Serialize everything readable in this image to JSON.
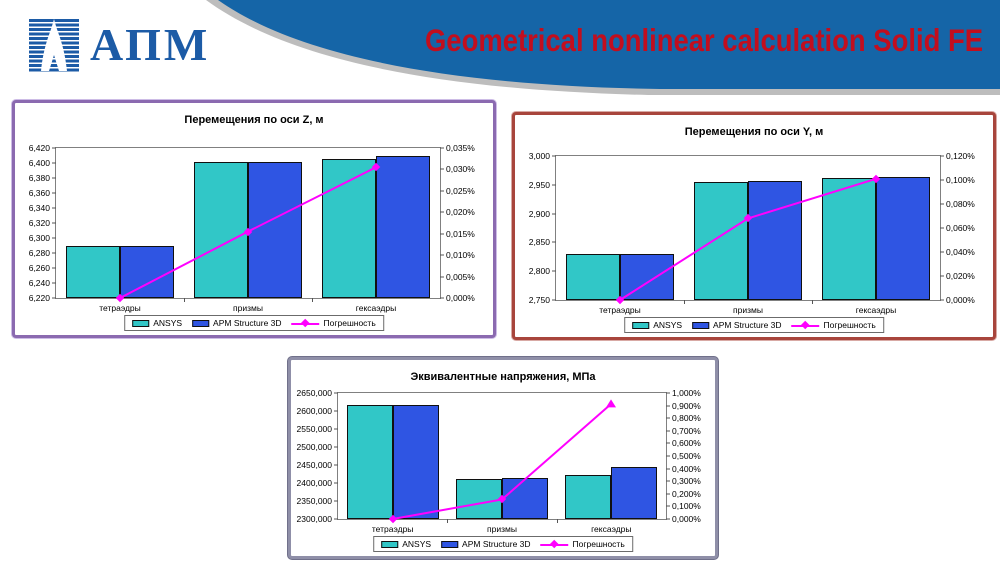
{
  "header": {
    "logo_text": "АПМ",
    "title": "Geometrical nonlinear calculation Solid FE"
  },
  "legend": {
    "ansys": "ANSYS",
    "apm": "APM Structure 3D",
    "error": "Погрешность"
  },
  "colors": {
    "ansys": "#31C7C7",
    "apm": "#2F55E3",
    "error": "#FF00FF",
    "banner_blue": "#1565A7",
    "banner_gray": "#BDBDBD",
    "title_red": "#C20E1E",
    "logo_blue": "#1C5BA6"
  },
  "chart_data": [
    {
      "type": "bar+line",
      "title": "Перемещения по оси Z, м",
      "categories": [
        "тетраэдры",
        "призмы",
        "гексаэдры"
      ],
      "series": [
        {
          "name": "ANSYS",
          "values": [
            6.29,
            6.401,
            6.406
          ]
        },
        {
          "name": "APM Structure 3D",
          "values": [
            6.29,
            6.402,
            6.409
          ]
        }
      ],
      "line": {
        "name": "Погрешность",
        "values_pct": [
          0.0,
          0.0155,
          0.0305
        ]
      },
      "left_axis": {
        "min": 6.22,
        "max": 6.42,
        "ticks": [
          "6,420",
          "6,400",
          "6,380",
          "6,360",
          "6,340",
          "6,320",
          "6,300",
          "6,280",
          "6,260",
          "6,240",
          "6,220"
        ]
      },
      "right_axis": {
        "min": 0.0,
        "max": 0.035,
        "ticks": [
          "0,035%",
          "0,030%",
          "0,025%",
          "0,020%",
          "0,015%",
          "0,010%",
          "0,005%",
          "0,000%"
        ]
      },
      "markers": [
        "diamond",
        "diamond",
        "diamond"
      ],
      "border_color": "#8B6AB0",
      "border_glow": "#CDBCE6",
      "legend_position": "bottom",
      "grid": "off"
    },
    {
      "type": "bar+line",
      "title": "Перемещения по оси Y, м",
      "categories": [
        "тетраэдры",
        "призмы",
        "гексаэдры"
      ],
      "series": [
        {
          "name": "ANSYS",
          "values": [
            2.83,
            2.955,
            2.961
          ]
        },
        {
          "name": "APM Structure 3D",
          "values": [
            2.83,
            2.957,
            2.963
          ]
        }
      ],
      "line": {
        "name": "Погрешность",
        "values_pct": [
          0.0,
          0.068,
          0.101
        ]
      },
      "left_axis": {
        "min": 2.75,
        "max": 3.0,
        "ticks": [
          "3,000",
          "2,950",
          "2,900",
          "2,850",
          "2,800",
          "2,750"
        ]
      },
      "right_axis": {
        "min": 0.0,
        "max": 0.12,
        "ticks": [
          "0,120%",
          "0,100%",
          "0,080%",
          "0,060%",
          "0,040%",
          "0,020%",
          "0,000%"
        ]
      },
      "markers": [
        "diamond",
        "diamond",
        "diamond"
      ],
      "border_color": "#A8453C",
      "border_glow": "#D8A9A4",
      "legend_position": "bottom",
      "grid": "off"
    },
    {
      "type": "bar+line",
      "title": "Эквивалентные напряжения, МПа",
      "categories": [
        "тетраэдры",
        "призмы",
        "гексаэдры"
      ],
      "series": [
        {
          "name": "ANSYS",
          "values": [
            2618,
            2411,
            2421
          ]
        },
        {
          "name": "APM Structure 3D",
          "values": [
            2618,
            2415,
            2444
          ]
        }
      ],
      "line": {
        "name": "Погрешность",
        "values_pct": [
          0.0,
          0.155,
          0.915
        ]
      },
      "left_axis": {
        "min": 2300,
        "max": 2650,
        "ticks": [
          "2650,000",
          "2600,000",
          "2550,000",
          "2500,000",
          "2450,000",
          "2400,000",
          "2350,000",
          "2300,000"
        ]
      },
      "right_axis": {
        "min": 0.0,
        "max": 1.0,
        "ticks": [
          "1,000%",
          "0,900%",
          "0,800%",
          "0,700%",
          "0,600%",
          "0,500%",
          "0,400%",
          "0,300%",
          "0,200%",
          "0,100%",
          "0,000%"
        ]
      },
      "markers": [
        "diamond",
        "diamond",
        "triangle"
      ],
      "border_color": "#8F8FA8",
      "border_glow": "#70708A",
      "legend_position": "bottom",
      "grid": "off"
    }
  ]
}
